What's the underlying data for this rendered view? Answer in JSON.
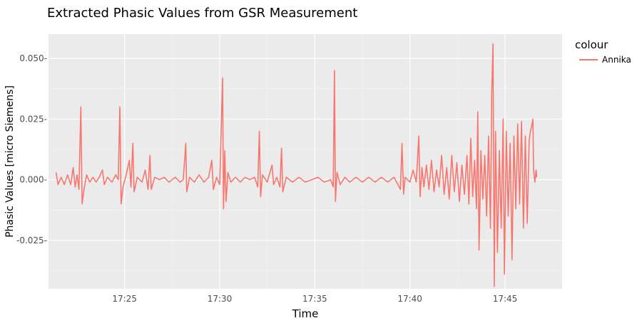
{
  "chart_data": {
    "type": "line",
    "title": "Extracted Phasic Values from GSR Measurement",
    "xlabel": "Time",
    "ylabel": "Phasic Values [micro Siemens]",
    "x_range_minutes": [
      "17:21",
      "17:48"
    ],
    "ylim": [
      -0.045,
      0.06
    ],
    "x_ticks": [
      {
        "value": "17:25",
        "label": "17:25"
      },
      {
        "value": "17:30",
        "label": "17:30"
      },
      {
        "value": "17:35",
        "label": "17:35"
      },
      {
        "value": "17:40",
        "label": "17:40"
      },
      {
        "value": "17:45",
        "label": "17:45"
      }
    ],
    "y_ticks": [
      {
        "value": 0.05,
        "label": "0.050-"
      },
      {
        "value": 0.025,
        "label": "0.025-"
      },
      {
        "value": 0.0,
        "label": "0.000-"
      },
      {
        "value": -0.025,
        "label": "-0.025-"
      }
    ],
    "grid": true,
    "legend": {
      "title": "colour",
      "placement": "right"
    },
    "series": [
      {
        "name": "Annika",
        "color": "#F8766D",
        "points": [
          [
            "17:21:24",
            0.003
          ],
          [
            "17:21:30",
            -0.002
          ],
          [
            "17:21:40",
            0.001
          ],
          [
            "17:21:50",
            -0.002
          ],
          [
            "17:22:00",
            0.002
          ],
          [
            "17:22:10",
            -0.002
          ],
          [
            "17:22:18",
            0.005
          ],
          [
            "17:22:24",
            -0.003
          ],
          [
            "17:22:30",
            0.002
          ],
          [
            "17:22:36",
            -0.004
          ],
          [
            "17:22:42",
            0.03
          ],
          [
            "17:22:46",
            -0.01
          ],
          [
            "17:22:52",
            -0.004
          ],
          [
            "17:23:00",
            0.002
          ],
          [
            "17:23:10",
            -0.001
          ],
          [
            "17:23:20",
            0.001
          ],
          [
            "17:23:30",
            -0.001
          ],
          [
            "17:23:40",
            0.001
          ],
          [
            "17:23:50",
            0.004
          ],
          [
            "17:23:56",
            -0.002
          ],
          [
            "17:24:06",
            0.001
          ],
          [
            "17:24:20",
            -0.001
          ],
          [
            "17:24:32",
            0.002
          ],
          [
            "17:24:40",
            0.0
          ],
          [
            "17:24:45",
            0.03
          ],
          [
            "17:24:49",
            -0.01
          ],
          [
            "17:24:55",
            -0.003
          ],
          [
            "17:25:05",
            0.002
          ],
          [
            "17:25:15",
            0.008
          ],
          [
            "17:25:20",
            -0.003
          ],
          [
            "17:25:26",
            0.015
          ],
          [
            "17:25:30",
            -0.005
          ],
          [
            "17:25:40",
            0.001
          ],
          [
            "17:25:55",
            -0.001
          ],
          [
            "17:26:05",
            0.004
          ],
          [
            "17:26:14",
            -0.004
          ],
          [
            "17:26:20",
            0.01
          ],
          [
            "17:26:24",
            -0.004
          ],
          [
            "17:26:35",
            0.001
          ],
          [
            "17:26:50",
            0.0
          ],
          [
            "17:27:05",
            0.001
          ],
          [
            "17:27:20",
            -0.001
          ],
          [
            "17:27:40",
            0.001
          ],
          [
            "17:27:55",
            -0.001
          ],
          [
            "17:28:05",
            0.0
          ],
          [
            "17:28:13",
            0.015
          ],
          [
            "17:28:16",
            -0.005
          ],
          [
            "17:28:25",
            0.001
          ],
          [
            "17:28:40",
            -0.001
          ],
          [
            "17:28:55",
            0.002
          ],
          [
            "17:29:10",
            -0.001
          ],
          [
            "17:29:25",
            0.001
          ],
          [
            "17:29:35",
            0.008
          ],
          [
            "17:29:40",
            -0.004
          ],
          [
            "17:29:50",
            0.001
          ],
          [
            "17:30:00",
            -0.002
          ],
          [
            "17:30:09",
            0.042
          ],
          [
            "17:30:12",
            -0.012
          ],
          [
            "17:30:16",
            0.012
          ],
          [
            "17:30:20",
            -0.009
          ],
          [
            "17:30:26",
            0.003
          ],
          [
            "17:30:35",
            -0.001
          ],
          [
            "17:30:50",
            0.001
          ],
          [
            "17:31:05",
            -0.001
          ],
          [
            "17:31:20",
            0.001
          ],
          [
            "17:31:35",
            0.0
          ],
          [
            "17:31:50",
            0.001
          ],
          [
            "17:32:00",
            -0.003
          ],
          [
            "17:32:05",
            0.02
          ],
          [
            "17:32:09",
            -0.007
          ],
          [
            "17:32:15",
            0.002
          ],
          [
            "17:32:30",
            -0.001
          ],
          [
            "17:32:45",
            0.006
          ],
          [
            "17:32:50",
            -0.002
          ],
          [
            "17:33:00",
            0.001
          ],
          [
            "17:33:10",
            -0.003
          ],
          [
            "17:33:15",
            0.013
          ],
          [
            "17:33:19",
            -0.005
          ],
          [
            "17:33:30",
            0.001
          ],
          [
            "17:33:50",
            -0.001
          ],
          [
            "17:34:10",
            0.001
          ],
          [
            "17:34:30",
            -0.001
          ],
          [
            "17:34:50",
            0.0
          ],
          [
            "17:35:10",
            0.001
          ],
          [
            "17:35:30",
            -0.001
          ],
          [
            "17:35:50",
            0.0
          ],
          [
            "17:35:58",
            -0.003
          ],
          [
            "17:36:02",
            0.045
          ],
          [
            "17:36:05",
            -0.009
          ],
          [
            "17:36:10",
            0.003
          ],
          [
            "17:36:20",
            -0.002
          ],
          [
            "17:36:35",
            0.001
          ],
          [
            "17:36:50",
            -0.001
          ],
          [
            "17:37:10",
            0.001
          ],
          [
            "17:37:30",
            -0.001
          ],
          [
            "17:37:50",
            0.001
          ],
          [
            "17:38:10",
            -0.001
          ],
          [
            "17:38:30",
            0.001
          ],
          [
            "17:38:50",
            -0.001
          ],
          [
            "17:39:10",
            0.001
          ],
          [
            "17:39:30",
            -0.004
          ],
          [
            "17:39:35",
            0.015
          ],
          [
            "17:39:40",
            -0.006
          ],
          [
            "17:39:45",
            0.001
          ],
          [
            "17:40:00",
            -0.001
          ],
          [
            "17:40:10",
            0.004
          ],
          [
            "17:40:20",
            -0.001
          ],
          [
            "17:40:28",
            0.018
          ],
          [
            "17:40:32",
            -0.007
          ],
          [
            "17:40:38",
            0.005
          ],
          [
            "17:40:44",
            -0.003
          ],
          [
            "17:40:52",
            0.006
          ],
          [
            "17:41:00",
            -0.004
          ],
          [
            "17:41:08",
            0.008
          ],
          [
            "17:41:16",
            -0.005
          ],
          [
            "17:41:24",
            0.004
          ],
          [
            "17:41:32",
            -0.003
          ],
          [
            "17:41:40",
            0.01
          ],
          [
            "17:41:48",
            -0.006
          ],
          [
            "17:41:56",
            0.005
          ],
          [
            "17:42:04",
            -0.008
          ],
          [
            "17:42:12",
            0.01
          ],
          [
            "17:42:20",
            -0.005
          ],
          [
            "17:42:28",
            0.007
          ],
          [
            "17:42:36",
            -0.009
          ],
          [
            "17:42:44",
            0.006
          ],
          [
            "17:42:52",
            -0.006
          ],
          [
            "17:43:00",
            0.01
          ],
          [
            "17:43:06",
            -0.01
          ],
          [
            "17:43:12",
            0.017
          ],
          [
            "17:43:18",
            -0.007
          ],
          [
            "17:43:24",
            0.008
          ],
          [
            "17:43:30",
            -0.012
          ],
          [
            "17:43:34",
            0.028
          ],
          [
            "17:43:38",
            -0.029
          ],
          [
            "17:43:44",
            0.012
          ],
          [
            "17:43:50",
            -0.008
          ],
          [
            "17:43:56",
            0.01
          ],
          [
            "17:44:02",
            -0.015
          ],
          [
            "17:44:08",
            0.018
          ],
          [
            "17:44:14",
            -0.02
          ],
          [
            "17:44:18",
            0.035
          ],
          [
            "17:44:22",
            0.056
          ],
          [
            "17:44:26",
            -0.044
          ],
          [
            "17:44:30",
            0.02
          ],
          [
            "17:44:36",
            -0.03
          ],
          [
            "17:44:42",
            0.012
          ],
          [
            "17:44:48",
            -0.02
          ],
          [
            "17:44:54",
            0.025
          ],
          [
            "17:44:58",
            -0.039
          ],
          [
            "17:45:04",
            0.02
          ],
          [
            "17:45:10",
            -0.015
          ],
          [
            "17:45:16",
            0.015
          ],
          [
            "17:45:22",
            -0.033
          ],
          [
            "17:45:28",
            0.018
          ],
          [
            "17:45:34",
            -0.012
          ],
          [
            "17:45:40",
            0.023
          ],
          [
            "17:45:46",
            -0.01
          ],
          [
            "17:45:52",
            0.024
          ],
          [
            "17:45:58",
            -0.02
          ],
          [
            "17:46:04",
            0.018
          ],
          [
            "17:46:10",
            -0.018
          ],
          [
            "17:46:16",
            0.016
          ],
          [
            "17:46:20",
            0.02
          ],
          [
            "17:46:24",
            0.022
          ],
          [
            "17:46:28",
            0.025
          ],
          [
            "17:46:30",
            0.004
          ],
          [
            "17:46:34",
            -0.001
          ],
          [
            "17:46:38",
            0.004
          ],
          [
            "17:46:40",
            0.001
          ]
        ]
      }
    ]
  }
}
